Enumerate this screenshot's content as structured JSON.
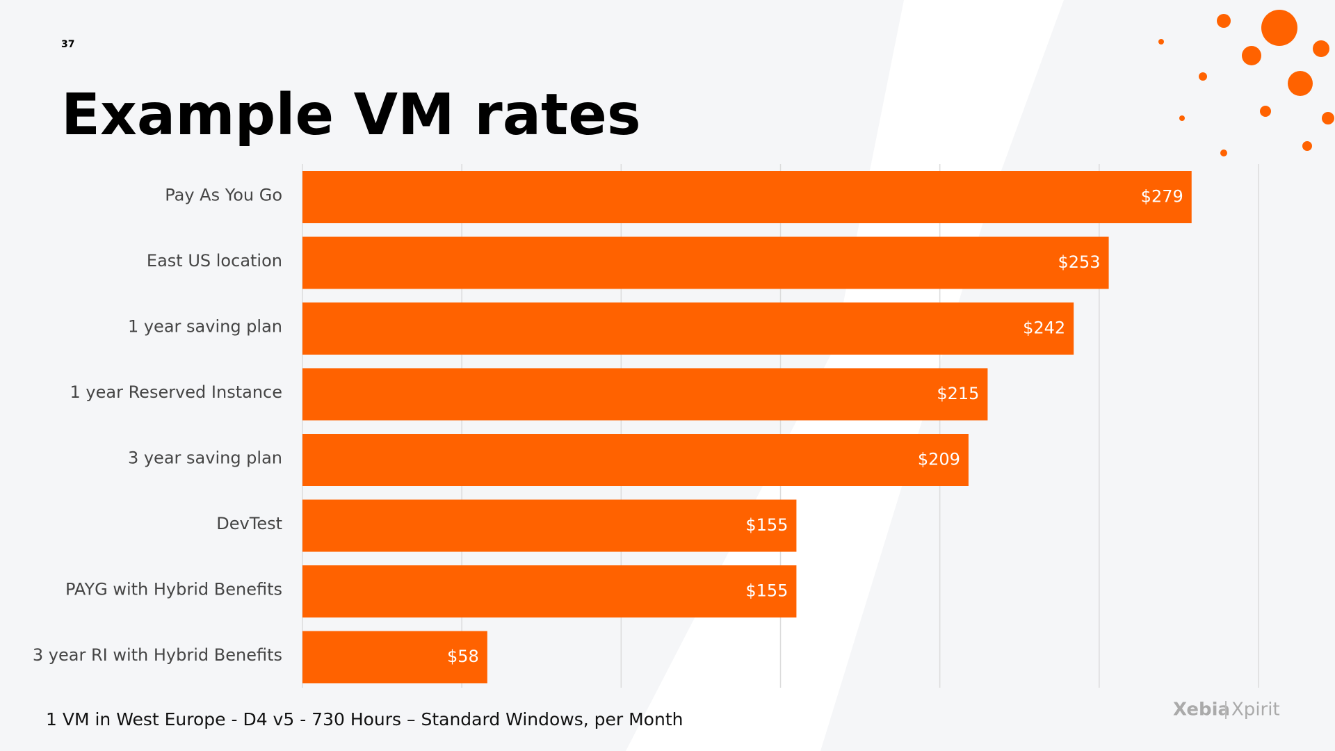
{
  "slide": {
    "number": "37",
    "footnote": "1 VM in West Europe - D4 v5 - 730 Hours – Standard Windows, per Month",
    "logo": [
      "Xebia",
      "Xpirit"
    ]
  },
  "chart_data": {
    "type": "hbar",
    "title": "Example VM rates",
    "categories": [
      "Pay As You Go",
      "East US location",
      "1 year saving plan",
      "1 year Reserved Instance",
      "3 year saving plan",
      "DevTest",
      "PAYG with Hybrid Benefits",
      "3 year RI with Hybrid Benefits"
    ],
    "values": [
      279,
      253,
      242,
      215,
      209,
      155,
      155,
      58
    ],
    "value_labels": [
      "$279",
      "$253",
      "$242",
      "$215",
      "$209",
      "$155",
      "$155",
      "$58"
    ],
    "color": "#ff6200",
    "xlim": [
      0,
      300
    ],
    "xticks": [
      0,
      50,
      100,
      150,
      200,
      250,
      300
    ],
    "grid": true
  }
}
